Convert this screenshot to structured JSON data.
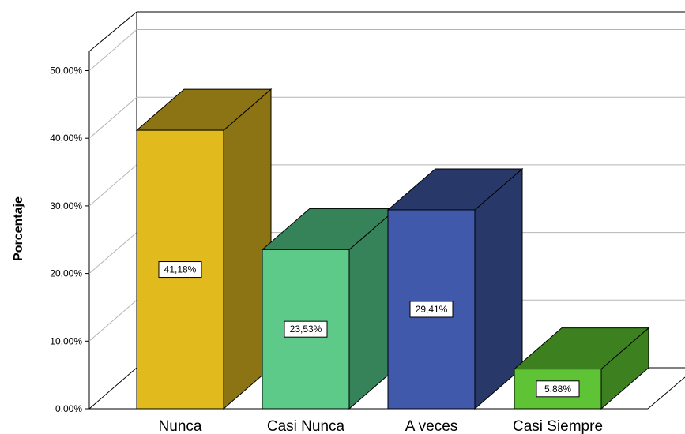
{
  "chart_data": {
    "type": "bar",
    "style": "3d",
    "categories": [
      "Nunca",
      "Casi Nunca",
      "A veces",
      "Casi Siempre"
    ],
    "values": [
      41.18,
      23.53,
      29.41,
      5.88
    ],
    "data_labels": [
      "41,18%",
      "23,53%",
      "29,41%",
      "5,88%"
    ],
    "ylabel": "Porcentaje",
    "ylim": [
      0,
      50
    ],
    "yticks": [
      0,
      10,
      20,
      30,
      40,
      50
    ],
    "ytick_labels": [
      "0,00%",
      "10,00%",
      "20,00%",
      "30,00%",
      "40,00%",
      "50,00%"
    ],
    "grid": true,
    "colors": [
      {
        "front": "#E1BB1E",
        "side": "#8C7414",
        "top": "#8C7414"
      },
      {
        "front": "#5ECA8A",
        "side": "#368259",
        "top": "#368259"
      },
      {
        "front": "#4059AA",
        "side": "#283869",
        "top": "#283869"
      },
      {
        "front": "#5FC435",
        "side": "#3C8020",
        "top": "#3C8020"
      }
    ]
  }
}
